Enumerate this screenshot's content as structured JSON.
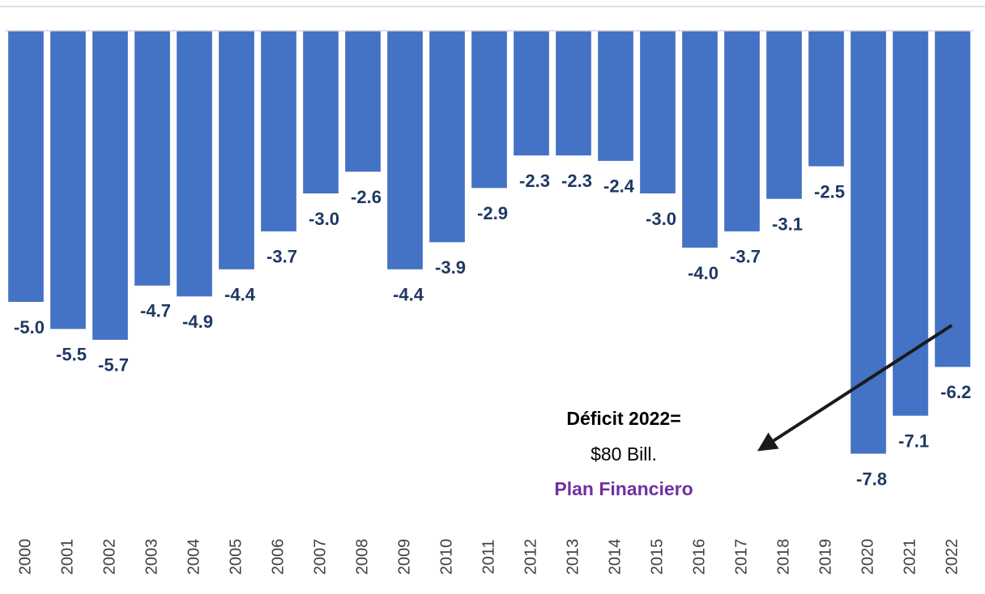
{
  "chart_data": {
    "type": "bar",
    "categories": [
      "2000",
      "2001",
      "2002",
      "2003",
      "2004",
      "2005",
      "2006",
      "2007",
      "2008",
      "2009",
      "2010",
      "2011",
      "2012",
      "2013",
      "2014",
      "2015",
      "2016",
      "2017",
      "2018",
      "2019",
      "2020",
      "2021",
      "2022"
    ],
    "values": [
      -5.0,
      -5.5,
      -5.7,
      -4.7,
      -4.9,
      -4.4,
      -3.7,
      -3.0,
      -2.6,
      -4.4,
      -3.9,
      -2.9,
      -2.3,
      -2.3,
      -2.4,
      -3.0,
      -4.0,
      -3.7,
      -3.1,
      -2.5,
      -7.8,
      -7.1,
      -6.2
    ],
    "value_labels": [
      "-5.0",
      "-5.5",
      "-5.7",
      "-4.7",
      "-4.9",
      "-4.4",
      "-3.7",
      "-3.0",
      "-2.6",
      "-4.4",
      "-3.9",
      "-2.9",
      "-2.3",
      "-2.3",
      "-2.4",
      "-3.0",
      "-4.0",
      "-3.7",
      "-3.1",
      "-2.5",
      "-7.8",
      "-7.1",
      "-6.2"
    ],
    "color": "#4472c4",
    "annotations": [
      "Déficit 2022=",
      "$80 Bill.",
      "Plan Financiero"
    ]
  }
}
